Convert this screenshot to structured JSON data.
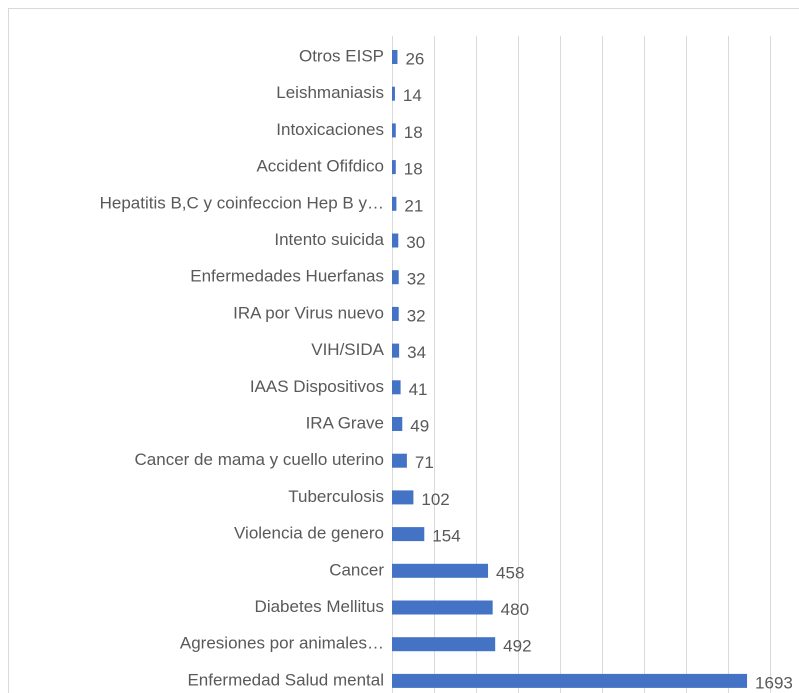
{
  "chart_data": {
    "type": "barh",
    "categories": [
      "Otros EISP",
      "Leishmaniasis",
      "Intoxicaciones",
      "Accident Ofifdico",
      "Hepatitis B,C y coinfeccion Hep B y…",
      "Intento suicida",
      "Enfermedades Huerfanas",
      "IRA por Virus nuevo",
      "VIH/SIDA",
      "IAAS Dispositivos",
      "IRA Grave",
      "Cancer de mama y cuello uterino",
      "Tuberculosis",
      "Violencia de genero",
      "Cancer",
      "Diabetes Mellitus",
      "Agresiones por animales…",
      "Enfermedad Salud mental"
    ],
    "values": [
      26,
      14,
      18,
      18,
      21,
      30,
      32,
      32,
      34,
      41,
      49,
      71,
      102,
      154,
      458,
      480,
      492,
      1693
    ],
    "color": "#4472c4",
    "xlim": [
      0,
      1800
    ],
    "xticks": [
      0,
      200,
      400,
      600,
      800,
      1000,
      1200,
      1400,
      1600,
      1800
    ],
    "grid": true
  }
}
